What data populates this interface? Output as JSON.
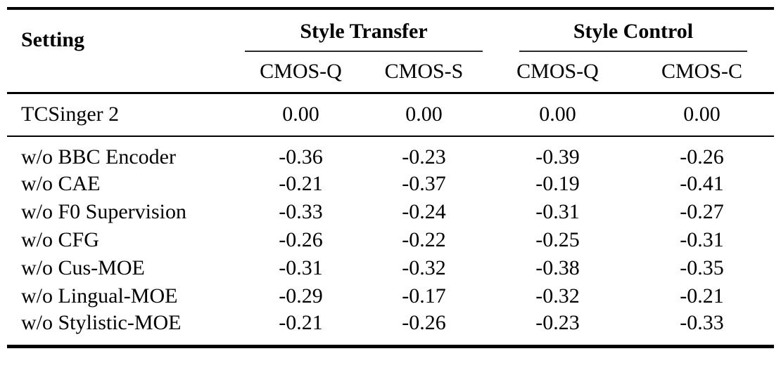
{
  "table": {
    "setting_header": "Setting",
    "groups": [
      {
        "label": "Style Transfer",
        "columns": [
          "CMOS-Q",
          "CMOS-S"
        ]
      },
      {
        "label": "Style Control",
        "columns": [
          "CMOS-Q",
          "CMOS-C"
        ]
      }
    ],
    "baseline_row": {
      "setting": "TCSinger 2",
      "values": [
        "0.00",
        "0.00",
        "0.00",
        "0.00"
      ]
    },
    "rows": [
      {
        "setting": "w/o BBC Encoder",
        "values": [
          "-0.36",
          "-0.23",
          "-0.39",
          "-0.26"
        ]
      },
      {
        "setting": "w/o CAE",
        "values": [
          "-0.21",
          "-0.37",
          "-0.19",
          "-0.41"
        ]
      },
      {
        "setting": "w/o F0 Supervision",
        "values": [
          "-0.33",
          "-0.24",
          "-0.31",
          "-0.27"
        ]
      },
      {
        "setting": "w/o CFG",
        "values": [
          "-0.26",
          "-0.22",
          "-0.25",
          "-0.31"
        ]
      },
      {
        "setting": "w/o Cus-MOE",
        "values": [
          "-0.31",
          "-0.32",
          "-0.38",
          "-0.35"
        ]
      },
      {
        "setting": "w/o Lingual-MOE",
        "values": [
          "-0.29",
          "-0.17",
          "-0.32",
          "-0.21"
        ]
      },
      {
        "setting": "w/o Stylistic-MOE",
        "values": [
          "-0.21",
          "-0.26",
          "-0.23",
          "-0.33"
        ]
      }
    ]
  },
  "chart_data": {
    "type": "table",
    "title": "",
    "column_groups": [
      "Style Transfer",
      "Style Control"
    ],
    "columns": [
      "Setting",
      "Style Transfer CMOS-Q",
      "Style Transfer CMOS-S",
      "Style Control CMOS-Q",
      "Style Control CMOS-C"
    ],
    "rows": [
      [
        "TCSinger 2",
        0.0,
        0.0,
        0.0,
        0.0
      ],
      [
        "w/o BBC Encoder",
        -0.36,
        -0.23,
        -0.39,
        -0.26
      ],
      [
        "w/o CAE",
        -0.21,
        -0.37,
        -0.19,
        -0.41
      ],
      [
        "w/o F0 Supervision",
        -0.33,
        -0.24,
        -0.31,
        -0.27
      ],
      [
        "w/o CFG",
        -0.26,
        -0.22,
        -0.25,
        -0.31
      ],
      [
        "w/o Cus-MOE",
        -0.31,
        -0.32,
        -0.38,
        -0.35
      ],
      [
        "w/o Lingual-MOE",
        -0.29,
        -0.17,
        -0.32,
        -0.21
      ],
      [
        "w/o Stylistic-MOE",
        -0.21,
        -0.26,
        -0.23,
        -0.33
      ]
    ]
  },
  "colors": {
    "text": "#000000",
    "rule": "#000000",
    "background": "#ffffff"
  }
}
